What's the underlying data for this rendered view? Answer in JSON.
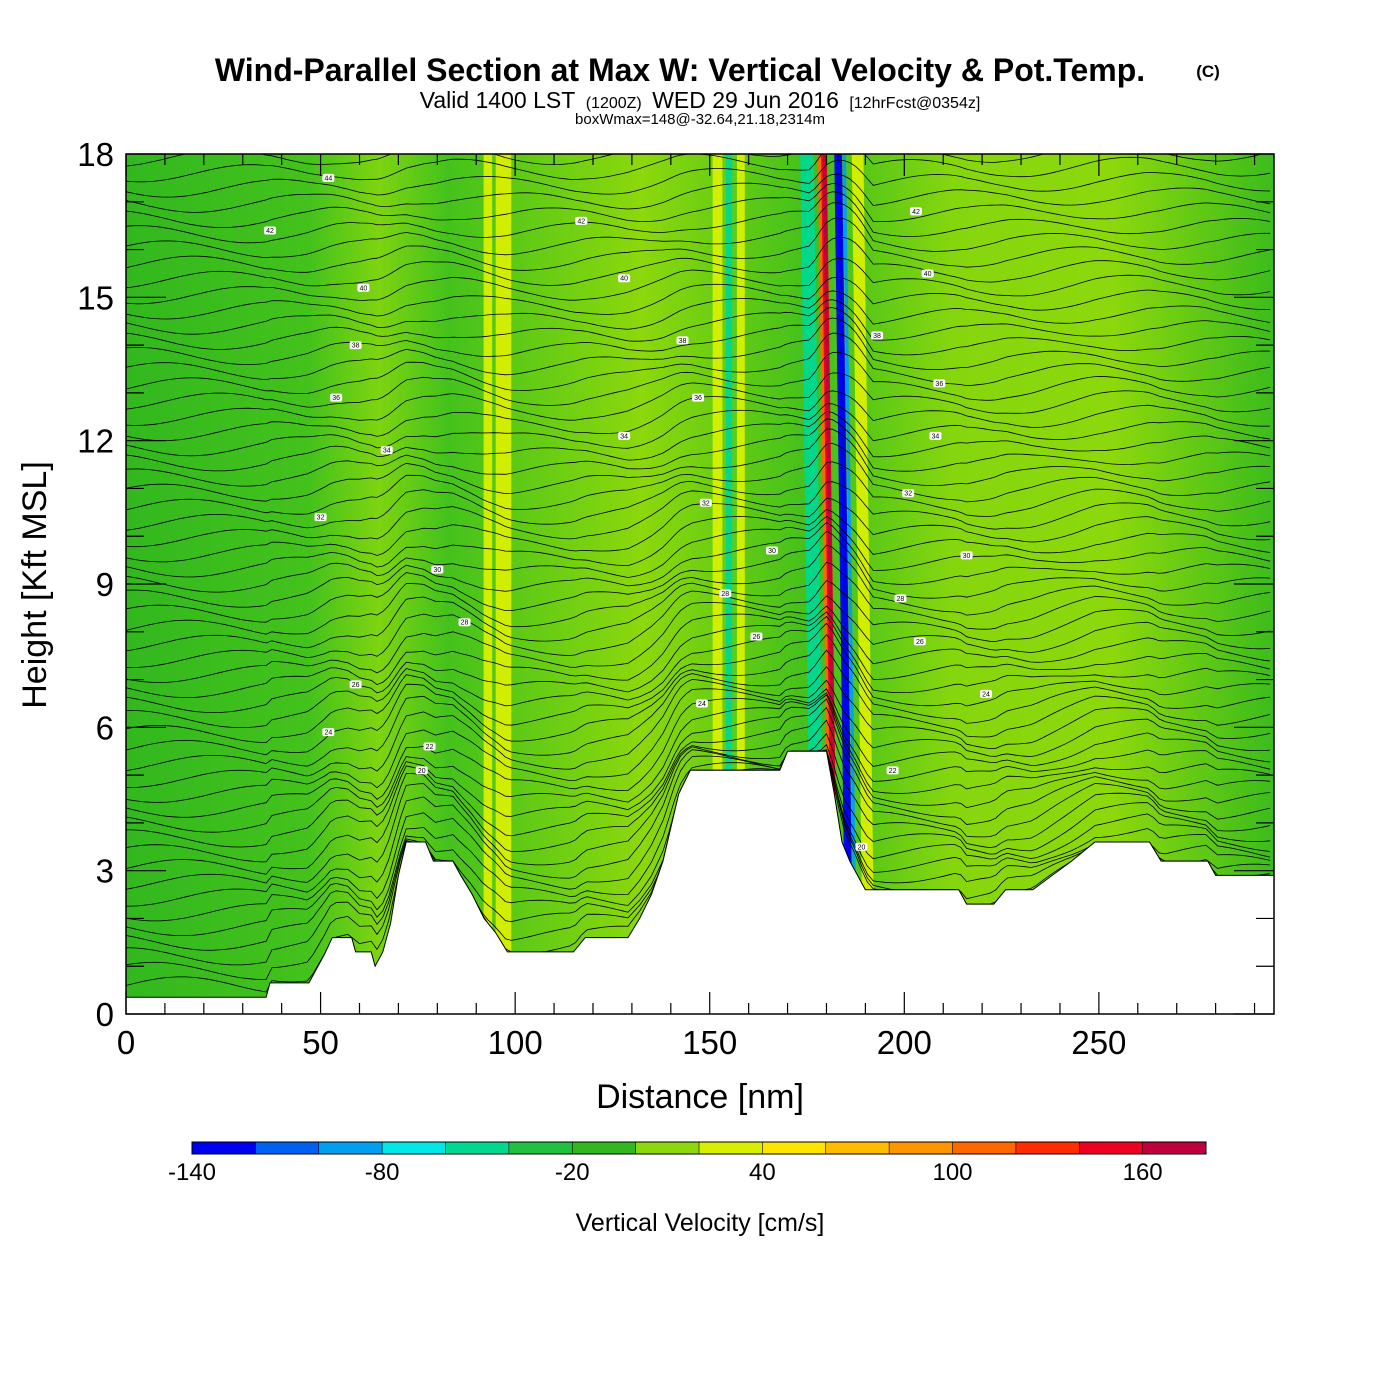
{
  "title": {
    "main": "Wind-Parallel Section at Max W: Vertical Velocity & Pot.Temp.",
    "copyright": "(C)",
    "valid_prefix": "Valid 1400 LST",
    "valid_utc": "(1200Z)",
    "valid_date": "WED 29 Jun 2016",
    "forecast": "[12hrFcst@0354z]",
    "box_wmax": "boxWmax=148@-32.64,21.18,2314m"
  },
  "chart_data": {
    "type": "heatmap",
    "xlabel": "Distance [nm]",
    "ylabel": "Height [Kft MSL]",
    "xlim": [
      0,
      295
    ],
    "ylim": [
      0,
      18
    ],
    "x_ticks": [
      0,
      50,
      100,
      150,
      200,
      250
    ],
    "y_ticks": [
      0,
      3,
      6,
      9,
      12,
      15,
      18
    ],
    "x_minor_step": 10,
    "y_minor_step": 1,
    "grid": false,
    "colorbar": {
      "label": "Vertical Velocity [cm/s]",
      "levels": [
        -140,
        -120,
        -100,
        -80,
        -60,
        -40,
        -20,
        0,
        20,
        40,
        60,
        80,
        100,
        120,
        140,
        160,
        180
      ],
      "tick_labels": [
        -140,
        -80,
        -20,
        40,
        100,
        160
      ],
      "colors": [
        "#0000f0",
        "#0060f0",
        "#00a0f0",
        "#00e8e8",
        "#00d890",
        "#22c040",
        "#32b81e",
        "#8cd80c",
        "#d8f000",
        "#ffe400",
        "#ffbc00",
        "#ff9600",
        "#ff6800",
        "#ff2c00",
        "#f00020",
        "#c0003c"
      ]
    },
    "terrain_kft": [
      [
        0,
        0.35
      ],
      [
        36,
        0.35
      ],
      [
        37,
        0.65
      ],
      [
        47,
        0.65
      ],
      [
        49,
        0.95
      ],
      [
        51,
        1.25
      ],
      [
        53,
        1.6
      ],
      [
        58,
        1.6
      ],
      [
        59,
        1.3
      ],
      [
        63,
        1.3
      ],
      [
        64,
        1.0
      ],
      [
        66,
        1.3
      ],
      [
        68,
        1.9
      ],
      [
        70,
        2.9
      ],
      [
        72,
        3.6
      ],
      [
        77,
        3.6
      ],
      [
        79,
        3.2
      ],
      [
        84,
        3.2
      ],
      [
        86,
        2.9
      ],
      [
        89,
        2.5
      ],
      [
        92,
        2.0
      ],
      [
        95,
        1.7
      ],
      [
        98,
        1.3
      ],
      [
        115,
        1.3
      ],
      [
        118,
        1.6
      ],
      [
        129,
        1.6
      ],
      [
        132,
        2.0
      ],
      [
        135,
        2.5
      ],
      [
        138,
        3.2
      ],
      [
        140,
        3.9
      ],
      [
        142,
        4.6
      ],
      [
        145,
        5.1
      ],
      [
        168,
        5.1
      ],
      [
        170,
        5.5
      ],
      [
        180,
        5.5
      ],
      [
        182,
        4.6
      ],
      [
        184,
        3.6
      ],
      [
        186,
        3.2
      ],
      [
        190,
        2.6
      ],
      [
        214,
        2.6
      ],
      [
        216,
        2.3
      ],
      [
        223,
        2.3
      ],
      [
        226,
        2.6
      ],
      [
        233,
        2.6
      ],
      [
        238,
        2.9
      ],
      [
        243,
        3.2
      ],
      [
        249,
        3.6
      ],
      [
        263,
        3.6
      ],
      [
        266,
        3.2
      ],
      [
        278,
        3.2
      ],
      [
        280,
        2.9
      ],
      [
        295,
        2.9
      ]
    ],
    "w_features": [
      {
        "x": 93,
        "w": 2.2,
        "value": 38
      },
      {
        "x": 97,
        "w": 4.0,
        "value": 22
      },
      {
        "x": 152,
        "w": 2.5,
        "value": 30
      },
      {
        "x": 155,
        "w": 1.6,
        "value": -50
      },
      {
        "x": 158,
        "w": 2.0,
        "value": 28
      },
      {
        "x": 182,
        "w": 2.2,
        "value": 148
      },
      {
        "x": 186,
        "w": 2.0,
        "value": -135
      },
      {
        "x": 178,
        "w": 3.5,
        "value": -45
      },
      {
        "x": 191,
        "w": 3.0,
        "value": 35
      }
    ],
    "theta_contour_labels": [
      {
        "x": 52,
        "y": 17.5,
        "text": "44"
      },
      {
        "x": 37,
        "y": 16.4,
        "text": "42"
      },
      {
        "x": 61,
        "y": 15.2,
        "text": "40"
      },
      {
        "x": 59,
        "y": 14.0,
        "text": "38"
      },
      {
        "x": 54,
        "y": 12.9,
        "text": "36"
      },
      {
        "x": 67,
        "y": 11.8,
        "text": "34"
      },
      {
        "x": 50,
        "y": 10.4,
        "text": "32"
      },
      {
        "x": 80,
        "y": 9.3,
        "text": "30"
      },
      {
        "x": 87,
        "y": 8.2,
        "text": "28"
      },
      {
        "x": 59,
        "y": 6.9,
        "text": "26"
      },
      {
        "x": 52,
        "y": 5.9,
        "text": "24"
      },
      {
        "x": 78,
        "y": 5.6,
        "text": "22"
      },
      {
        "x": 76,
        "y": 5.1,
        "text": "20"
      },
      {
        "x": 117,
        "y": 16.6,
        "text": "42"
      },
      {
        "x": 128,
        "y": 15.4,
        "text": "40"
      },
      {
        "x": 143,
        "y": 14.1,
        "text": "38"
      },
      {
        "x": 147,
        "y": 12.9,
        "text": "36"
      },
      {
        "x": 128,
        "y": 12.1,
        "text": "34"
      },
      {
        "x": 149,
        "y": 10.7,
        "text": "32"
      },
      {
        "x": 166,
        "y": 9.7,
        "text": "30"
      },
      {
        "x": 154,
        "y": 8.8,
        "text": "28"
      },
      {
        "x": 162,
        "y": 7.9,
        "text": "26"
      },
      {
        "x": 148,
        "y": 6.5,
        "text": "24"
      },
      {
        "x": 203,
        "y": 16.8,
        "text": "42"
      },
      {
        "x": 206,
        "y": 15.5,
        "text": "40"
      },
      {
        "x": 193,
        "y": 14.2,
        "text": "38"
      },
      {
        "x": 209,
        "y": 13.2,
        "text": "36"
      },
      {
        "x": 208,
        "y": 12.1,
        "text": "34"
      },
      {
        "x": 201,
        "y": 10.9,
        "text": "32"
      },
      {
        "x": 216,
        "y": 9.6,
        "text": "30"
      },
      {
        "x": 199,
        "y": 8.7,
        "text": "28"
      },
      {
        "x": 204,
        "y": 7.8,
        "text": "26"
      },
      {
        "x": 221,
        "y": 6.7,
        "text": "24"
      },
      {
        "x": 197,
        "y": 5.1,
        "text": "22"
      },
      {
        "x": 189,
        "y": 3.5,
        "text": "20"
      }
    ]
  }
}
